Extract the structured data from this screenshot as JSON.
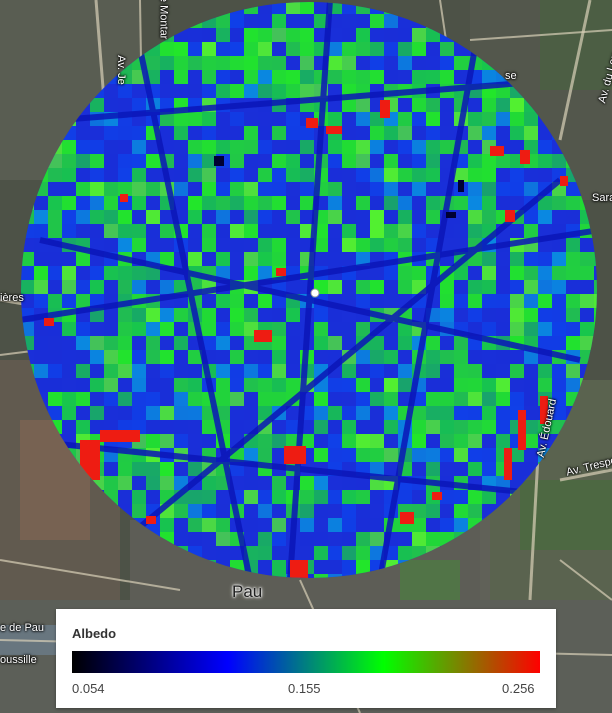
{
  "map": {
    "labels": {
      "pau": "Pau",
      "montardon": "r. de Montar",
      "av_left": "Av. Je",
      "av_du_loup": "Av. du Lou",
      "se": "se",
      "sara": "Sara",
      "ieres": "ières",
      "edouard": "Av. Édouard",
      "trespo": "Av. Trespo",
      "de_pau": "e de Pau",
      "oussille": "oussille"
    }
  },
  "legend": {
    "title": "Albedo",
    "min": "0.054",
    "mid": "0.155",
    "max": "0.256",
    "colors": [
      "#000000",
      "#0000ff",
      "#00ff00",
      "#ff0000"
    ]
  },
  "colors": {
    "overlay_blue": "#1a2fd8",
    "overlay_green": "#22e62a",
    "overlay_red": "#ee1c12",
    "marker": "#ffffff"
  }
}
